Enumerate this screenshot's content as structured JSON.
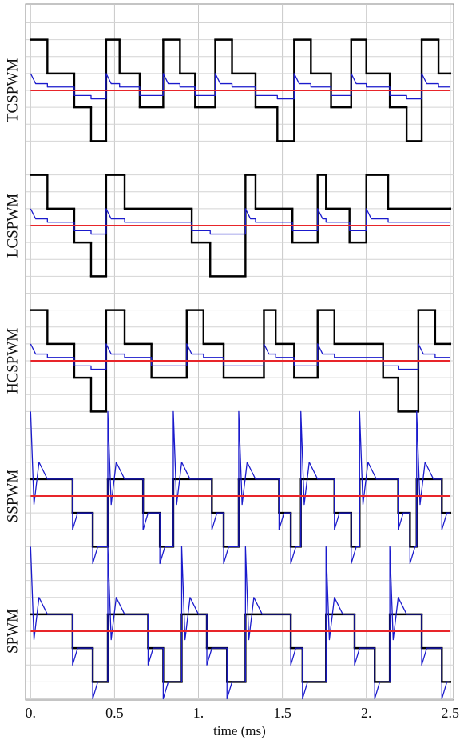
{
  "chart_data": [
    {
      "type": "line",
      "ylabel": "TCSPWM",
      "xlim": [
        -0.03,
        2.52
      ],
      "ylim": [
        -4,
        4
      ],
      "yticks": [
        -4,
        -3,
        -2,
        -1,
        0,
        1,
        2,
        3,
        4
      ],
      "grid": true,
      "series": [
        {
          "color": "#000000",
          "step": "post",
          "x": [
            0,
            0.1,
            0.26,
            0.36,
            0.45,
            0.53,
            0.65,
            0.79,
            0.89,
            0.98,
            1.1,
            1.2,
            1.34,
            1.47,
            1.57,
            1.67,
            1.79,
            1.91,
            2.0,
            2.14,
            2.24,
            2.33,
            2.43,
            2.5
          ],
          "values": [
            3,
            1,
            -1,
            -3,
            3,
            1,
            -1,
            3,
            1,
            -1,
            3,
            1,
            -1,
            -3,
            3,
            1,
            -1,
            3,
            1,
            -1,
            -3,
            3,
            1,
            1
          ]
        },
        {
          "color": "#1a1acc",
          "x": [
            0,
            0.03,
            0.1,
            0.1,
            0.26,
            0.26,
            0.36,
            0.36,
            0.45,
            0.45,
            0.48,
            0.53,
            0.53,
            0.65,
            0.65,
            0.79,
            0.79,
            0.82,
            0.89,
            0.89,
            0.98,
            0.98,
            1.1,
            1.1,
            1.13,
            1.2,
            1.2,
            1.34,
            1.34,
            1.47,
            1.47,
            1.57,
            1.57,
            1.6,
            1.67,
            1.67,
            1.79,
            1.79,
            1.91,
            1.91,
            1.94,
            2.0,
            2.0,
            2.14,
            2.14,
            2.24,
            2.24,
            2.33,
            2.33,
            2.36,
            2.43,
            2.43,
            2.5
          ],
          "values": [
            1.0,
            0.4,
            0.4,
            0.2,
            0.2,
            -0.3,
            -0.3,
            -0.5,
            -0.5,
            1.0,
            0.4,
            0.4,
            0.2,
            0.2,
            -0.3,
            -0.3,
            1.0,
            0.4,
            0.4,
            0.2,
            0.2,
            -0.3,
            -0.3,
            1.0,
            0.4,
            0.4,
            0.2,
            0.2,
            -0.3,
            -0.3,
            -0.5,
            -0.5,
            1.0,
            0.4,
            0.4,
            0.2,
            0.2,
            -0.3,
            -0.3,
            1.0,
            0.4,
            0.4,
            0.2,
            0.2,
            -0.3,
            -0.3,
            -0.5,
            -0.5,
            1.0,
            0.4,
            0.4,
            0.2,
            0.2
          ]
        },
        {
          "color": "#e8252a",
          "x": [
            0,
            2.5
          ],
          "values": [
            0,
            0
          ]
        }
      ]
    },
    {
      "type": "line",
      "ylabel": "LCSPWM",
      "xlim": [
        -0.03,
        2.52
      ],
      "ylim": [
        -4,
        4
      ],
      "yticks": [
        -4,
        -3,
        -2,
        -1,
        0,
        1,
        2,
        3,
        4
      ],
      "grid": true,
      "series": [
        {
          "color": "#000000",
          "step": "post",
          "x": [
            0,
            0.1,
            0.26,
            0.36,
            0.45,
            0.56,
            0.96,
            1.07,
            1.28,
            1.34,
            1.56,
            1.71,
            1.76,
            1.9,
            2.0,
            2.13,
            2.5
          ],
          "values": [
            3,
            1,
            -1,
            -3,
            3,
            1,
            -1,
            -3,
            3,
            1,
            -1,
            3,
            1,
            -1,
            3,
            1,
            1
          ]
        },
        {
          "color": "#1a1acc",
          "x": [
            0,
            0.03,
            0.1,
            0.1,
            0.26,
            0.26,
            0.36,
            0.36,
            0.45,
            0.45,
            0.48,
            0.56,
            0.56,
            0.96,
            0.96,
            1.07,
            1.07,
            1.28,
            1.28,
            1.31,
            1.34,
            1.34,
            1.56,
            1.56,
            1.71,
            1.71,
            1.74,
            1.76,
            1.76,
            1.9,
            1.9,
            2.0,
            2.0,
            2.03,
            2.13,
            2.13,
            2.5
          ],
          "values": [
            1.0,
            0.4,
            0.4,
            0.2,
            0.2,
            -0.3,
            -0.3,
            -0.5,
            -0.5,
            1.0,
            0.4,
            0.4,
            0.2,
            0.2,
            -0.3,
            -0.3,
            -0.5,
            -0.5,
            1.0,
            0.4,
            0.4,
            0.2,
            0.2,
            -0.3,
            -0.3,
            1.0,
            0.4,
            0.4,
            0.2,
            0.2,
            -0.3,
            -0.3,
            1.0,
            0.4,
            0.4,
            0.2,
            0.2
          ]
        },
        {
          "color": "#e8252a",
          "x": [
            0,
            2.5
          ],
          "values": [
            0,
            0
          ]
        }
      ]
    },
    {
      "type": "line",
      "ylabel": "HCSPWM",
      "xlim": [
        -0.03,
        2.52
      ],
      "ylim": [
        -4,
        4
      ],
      "yticks": [
        -4,
        -3,
        -2,
        -1,
        0,
        1,
        2,
        3,
        4
      ],
      "grid": true,
      "series": [
        {
          "color": "#000000",
          "step": "post",
          "x": [
            0,
            0.1,
            0.26,
            0.36,
            0.45,
            0.56,
            0.72,
            0.93,
            1.03,
            1.15,
            1.39,
            1.46,
            1.57,
            1.71,
            1.81,
            2.1,
            2.19,
            2.31,
            2.41,
            2.5
          ],
          "values": [
            3,
            1,
            -1,
            -3,
            3,
            1,
            -1,
            3,
            1,
            -1,
            3,
            1,
            -1,
            3,
            1,
            -1,
            -3,
            3,
            1,
            1
          ]
        },
        {
          "color": "#1a1acc",
          "x": [
            0,
            0.03,
            0.1,
            0.1,
            0.26,
            0.26,
            0.36,
            0.36,
            0.45,
            0.45,
            0.48,
            0.56,
            0.56,
            0.72,
            0.72,
            0.93,
            0.93,
            0.96,
            1.03,
            1.03,
            1.15,
            1.15,
            1.39,
            1.39,
            1.42,
            1.46,
            1.46,
            1.57,
            1.57,
            1.71,
            1.71,
            1.74,
            1.81,
            1.81,
            2.1,
            2.1,
            2.19,
            2.19,
            2.31,
            2.31,
            2.34,
            2.41,
            2.41,
            2.5
          ],
          "values": [
            1.0,
            0.4,
            0.4,
            0.2,
            0.2,
            -0.3,
            -0.3,
            -0.5,
            -0.5,
            1.0,
            0.4,
            0.4,
            0.2,
            0.2,
            -0.3,
            -0.3,
            1.0,
            0.4,
            0.4,
            0.2,
            0.2,
            -0.3,
            -0.3,
            1.0,
            0.4,
            0.4,
            0.2,
            0.2,
            -0.3,
            -0.3,
            1.0,
            0.4,
            0.4,
            0.2,
            0.2,
            -0.3,
            -0.3,
            -0.5,
            -0.5,
            1.0,
            0.4,
            0.4,
            0.2,
            0.2
          ]
        },
        {
          "color": "#e8252a",
          "x": [
            0,
            2.5
          ],
          "values": [
            0,
            0
          ]
        }
      ]
    },
    {
      "type": "line",
      "ylabel": "SSPWM",
      "xlim": [
        -0.03,
        2.52
      ],
      "ylim": [
        -4,
        4
      ],
      "yticks": [
        -4,
        -3,
        -2,
        -1,
        0,
        1,
        2,
        3,
        4
      ],
      "grid": true,
      "series": [
        {
          "color": "#000000",
          "step": "post",
          "x": [
            0,
            0.25,
            0.37,
            0.46,
            0.67,
            0.77,
            0.85,
            1.08,
            1.15,
            1.24,
            1.48,
            1.55,
            1.61,
            1.81,
            1.91,
            1.96,
            2.19,
            2.26,
            2.3,
            2.45,
            2.5
          ],
          "values": [
            1,
            -1,
            -3,
            1,
            -1,
            -3,
            1,
            -1,
            -3,
            1,
            -1,
            -3,
            1,
            -1,
            -3,
            1,
            -1,
            -3,
            1,
            -1,
            -1
          ]
        },
        {
          "color": "#1a1acc",
          "x": [
            0,
            0.02,
            0.05,
            0.1,
            0.25,
            0.25,
            0.28,
            0.37,
            0.37,
            0.4,
            0.46,
            0.46,
            0.48,
            0.51,
            0.56,
            0.67,
            0.67,
            0.7,
            0.77,
            0.77,
            0.8,
            0.85,
            0.85,
            0.87,
            0.9,
            0.95,
            1.08,
            1.08,
            1.11,
            1.15,
            1.15,
            1.18,
            1.24,
            1.24,
            1.26,
            1.29,
            1.34,
            1.48,
            1.48,
            1.51,
            1.55,
            1.55,
            1.58,
            1.61,
            1.61,
            1.63,
            1.66,
            1.71,
            1.81,
            1.81,
            1.84,
            1.91,
            1.91,
            1.94,
            1.96,
            1.96,
            1.98,
            2.01,
            2.06,
            2.19,
            2.19,
            2.22,
            2.26,
            2.26,
            2.29,
            2.3,
            2.3,
            2.32,
            2.35,
            2.4,
            2.45,
            2.45,
            2.48,
            2.5
          ],
          "values": [
            5,
            -0.5,
            2,
            1,
            1,
            -2,
            -1,
            -1,
            -4,
            -3,
            -3,
            5,
            -0.5,
            2,
            1,
            1,
            -2,
            -1,
            -1,
            -4,
            -3,
            -3,
            5,
            -0.5,
            2,
            1,
            1,
            -2,
            -1,
            -1,
            -4,
            -3,
            -3,
            5,
            -0.5,
            2,
            1,
            1,
            -2,
            -1,
            -1,
            -4,
            -3,
            -3,
            5,
            -0.5,
            2,
            1,
            1,
            -2,
            -1,
            -1,
            -4,
            -3,
            -3,
            5,
            -0.5,
            2,
            1,
            1,
            -2,
            -1,
            -1,
            -4,
            -3,
            -3,
            5,
            -0.5,
            2,
            1,
            1,
            -2,
            -1,
            -1
          ]
        },
        {
          "color": "#e8252a",
          "x": [
            0,
            2.5
          ],
          "values": [
            0,
            0
          ]
        }
      ]
    },
    {
      "type": "line",
      "ylabel": "SPWM",
      "xlabel": "time (ms)",
      "xlim": [
        -0.03,
        2.52
      ],
      "ylim": [
        -4,
        4
      ],
      "xticks": [
        {
          "value": 0,
          "label": "0."
        },
        0.5,
        {
          "value": 1,
          "label": "1."
        },
        1.5,
        {
          "value": 2,
          "label": "2."
        },
        2.5
      ],
      "yticks": [
        -4,
        -3,
        -2,
        -1,
        0,
        1,
        2,
        3,
        4
      ],
      "grid": true,
      "series": [
        {
          "color": "#000000",
          "step": "post",
          "x": [
            0,
            0.25,
            0.37,
            0.46,
            0.7,
            0.79,
            0.9,
            1.05,
            1.17,
            1.28,
            1.55,
            1.62,
            1.76,
            1.93,
            2.05,
            2.14,
            2.33,
            2.45,
            2.5
          ],
          "values": [
            1,
            -1,
            -3,
            1,
            -1,
            -3,
            1,
            -1,
            -3,
            1,
            -1,
            -3,
            1,
            -1,
            -3,
            1,
            -1,
            -3,
            -3
          ]
        },
        {
          "color": "#1a1acc",
          "x": [
            0,
            0.02,
            0.05,
            0.1,
            0.25,
            0.25,
            0.28,
            0.37,
            0.37,
            0.4,
            0.46,
            0.46,
            0.48,
            0.51,
            0.56,
            0.7,
            0.7,
            0.73,
            0.79,
            0.79,
            0.82,
            0.9,
            0.9,
            0.92,
            0.95,
            1.0,
            1.05,
            1.05,
            1.08,
            1.17,
            1.17,
            1.2,
            1.28,
            1.28,
            1.3,
            1.33,
            1.38,
            1.55,
            1.55,
            1.58,
            1.62,
            1.62,
            1.65,
            1.76,
            1.76,
            1.78,
            1.81,
            1.86,
            1.93,
            1.93,
            1.96,
            2.05,
            2.05,
            2.08,
            2.14,
            2.14,
            2.16,
            2.19,
            2.24,
            2.33,
            2.33,
            2.36,
            2.45,
            2.45,
            2.48,
            2.5
          ],
          "values": [
            5,
            -0.5,
            2,
            1,
            1,
            -2,
            -1,
            -1,
            -4,
            -3,
            -3,
            5,
            -0.5,
            2,
            1,
            1,
            -2,
            -1,
            -1,
            -4,
            -3,
            -3,
            5,
            -0.5,
            2,
            1,
            1,
            -2,
            -1,
            -1,
            -4,
            -3,
            -3,
            5,
            -0.5,
            2,
            1,
            1,
            -2,
            -1,
            -1,
            -4,
            -3,
            -3,
            5,
            -0.5,
            2,
            1,
            1,
            -2,
            -1,
            -1,
            -4,
            -3,
            -3,
            5,
            -0.5,
            2,
            1,
            1,
            -2,
            -1,
            -1,
            -4,
            -3,
            -3
          ]
        },
        {
          "color": "#e8252a",
          "x": [
            0,
            2.5
          ],
          "values": [
            0,
            0
          ]
        }
      ]
    }
  ]
}
